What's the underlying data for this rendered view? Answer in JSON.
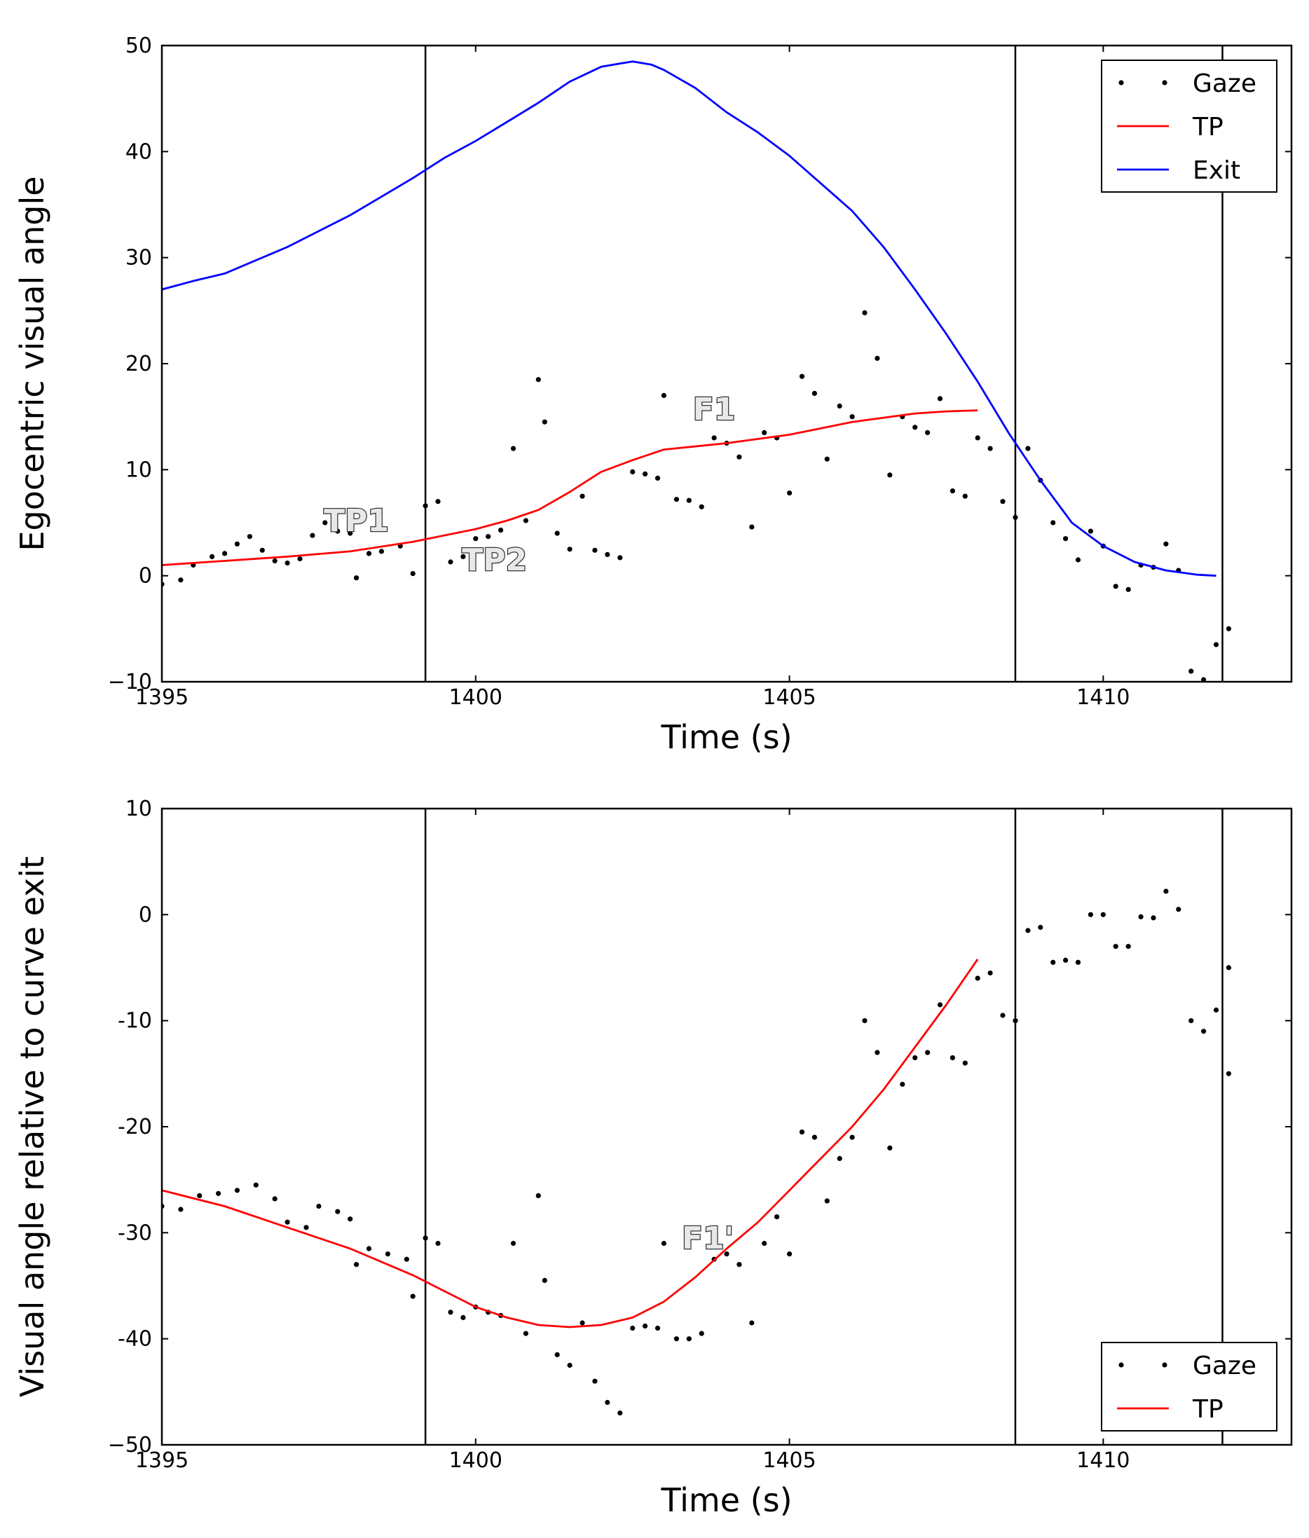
{
  "chart_data": [
    {
      "type": "line",
      "panel": "top",
      "xlabel": "Time (s)",
      "ylabel": "Egocentric visual angle",
      "xlim": [
        1395,
        1413
      ],
      "ylim": [
        -10,
        50
      ],
      "xticks": [
        1395,
        1400,
        1405,
        1410
      ],
      "yticks": [
        -10,
        0,
        10,
        20,
        30,
        40,
        50
      ],
      "ytick_labels": [
        "−10",
        "0",
        "10",
        "20",
        "30",
        "40",
        "50"
      ],
      "vlines": [
        1399.2,
        1408.6,
        1411.9
      ],
      "legend": [
        "Gaze",
        "TP",
        "Exit"
      ],
      "legend_loc": "upper right",
      "annotations": [
        {
          "text": "TP1",
          "x": 1398.1,
          "y": 4.2
        },
        {
          "text": "TP2",
          "x": 1400.3,
          "y": 0.5
        },
        {
          "text": "F1",
          "x": 1403.8,
          "y": 14.7
        }
      ],
      "series": [
        {
          "name": "Gaze",
          "style": "dots",
          "color": "#000000",
          "points": [
            [
              1395.0,
              -0.8
            ],
            [
              1395.3,
              -0.4
            ],
            [
              1395.5,
              1.0
            ],
            [
              1395.8,
              1.8
            ],
            [
              1396.0,
              2.1
            ],
            [
              1396.2,
              3.0
            ],
            [
              1396.4,
              3.7
            ],
            [
              1396.6,
              2.4
            ],
            [
              1396.8,
              1.4
            ],
            [
              1397.0,
              1.2
            ],
            [
              1397.2,
              1.6
            ],
            [
              1397.4,
              3.8
            ],
            [
              1397.6,
              5.0
            ],
            [
              1397.8,
              4.2
            ],
            [
              1398.0,
              4.0
            ],
            [
              1398.1,
              -0.2
            ],
            [
              1398.3,
              2.1
            ],
            [
              1398.5,
              2.3
            ],
            [
              1398.8,
              2.8
            ],
            [
              1399.0,
              0.2
            ],
            [
              1399.2,
              6.6
            ],
            [
              1399.4,
              7.0
            ],
            [
              1399.6,
              1.3
            ],
            [
              1399.8,
              1.8
            ],
            [
              1400.0,
              3.5
            ],
            [
              1400.2,
              3.7
            ],
            [
              1400.4,
              4.3
            ],
            [
              1400.6,
              12.0
            ],
            [
              1400.8,
              5.2
            ],
            [
              1401.0,
              18.5
            ],
            [
              1401.1,
              14.5
            ],
            [
              1401.3,
              4.0
            ],
            [
              1401.5,
              2.5
            ],
            [
              1401.7,
              7.5
            ],
            [
              1401.9,
              2.4
            ],
            [
              1402.1,
              2.0
            ],
            [
              1402.3,
              1.7
            ],
            [
              1402.5,
              9.8
            ],
            [
              1402.7,
              9.6
            ],
            [
              1402.9,
              9.2
            ],
            [
              1403.0,
              17.0
            ],
            [
              1403.2,
              7.2
            ],
            [
              1403.4,
              7.1
            ],
            [
              1403.6,
              6.5
            ],
            [
              1403.8,
              13.0
            ],
            [
              1404.0,
              12.5
            ],
            [
              1404.2,
              11.2
            ],
            [
              1404.4,
              4.6
            ],
            [
              1404.6,
              13.5
            ],
            [
              1404.8,
              13.0
            ],
            [
              1405.0,
              7.8
            ],
            [
              1405.2,
              18.8
            ],
            [
              1405.4,
              17.2
            ],
            [
              1405.6,
              11.0
            ],
            [
              1405.8,
              16.0
            ],
            [
              1406.0,
              15.0
            ],
            [
              1406.2,
              24.8
            ],
            [
              1406.4,
              20.5
            ],
            [
              1406.6,
              9.5
            ],
            [
              1406.8,
              15.0
            ],
            [
              1407.0,
              14.0
            ],
            [
              1407.2,
              13.5
            ],
            [
              1407.4,
              16.7
            ],
            [
              1407.6,
              8.0
            ],
            [
              1407.8,
              7.5
            ],
            [
              1408.0,
              13.0
            ],
            [
              1408.2,
              12.0
            ],
            [
              1408.4,
              7.0
            ],
            [
              1408.6,
              5.5
            ],
            [
              1408.8,
              12.0
            ],
            [
              1409.0,
              9.0
            ],
            [
              1409.2,
              5.0
            ],
            [
              1409.4,
              3.5
            ],
            [
              1409.6,
              1.5
            ],
            [
              1409.8,
              4.2
            ],
            [
              1410.0,
              2.8
            ],
            [
              1410.2,
              -1.0
            ],
            [
              1410.4,
              -1.3
            ],
            [
              1410.6,
              1.0
            ],
            [
              1410.8,
              0.8
            ],
            [
              1411.0,
              3.0
            ],
            [
              1411.2,
              0.5
            ],
            [
              1411.4,
              -9.0
            ],
            [
              1411.6,
              -9.8
            ],
            [
              1411.8,
              -6.5
            ],
            [
              1412.0,
              -5.0
            ]
          ]
        },
        {
          "name": "TP",
          "style": "line",
          "color": "#ff0000",
          "points": [
            [
              1395.0,
              1.0
            ],
            [
              1396.0,
              1.4
            ],
            [
              1397.0,
              1.8
            ],
            [
              1398.0,
              2.3
            ],
            [
              1399.0,
              3.2
            ],
            [
              1400.0,
              4.4
            ],
            [
              1400.5,
              5.2
            ],
            [
              1401.0,
              6.2
            ],
            [
              1401.5,
              7.9
            ],
            [
              1402.0,
              9.8
            ],
            [
              1402.5,
              10.9
            ],
            [
              1403.0,
              11.9
            ],
            [
              1404.0,
              12.5
            ],
            [
              1405.0,
              13.3
            ],
            [
              1406.0,
              14.5
            ],
            [
              1407.0,
              15.3
            ],
            [
              1407.5,
              15.5
            ],
            [
              1408.0,
              15.6
            ]
          ]
        },
        {
          "name": "Exit",
          "style": "line",
          "color": "#0000ff",
          "points": [
            [
              1395.0,
              27.0
            ],
            [
              1395.5,
              27.8
            ],
            [
              1396.0,
              28.5
            ],
            [
              1397.0,
              31.0
            ],
            [
              1398.0,
              34.0
            ],
            [
              1399.0,
              37.5
            ],
            [
              1399.5,
              39.4
            ],
            [
              1400.0,
              41.0
            ],
            [
              1400.5,
              42.8
            ],
            [
              1401.0,
              44.6
            ],
            [
              1401.5,
              46.6
            ],
            [
              1402.0,
              48.0
            ],
            [
              1402.5,
              48.5
            ],
            [
              1402.8,
              48.2
            ],
            [
              1403.0,
              47.7
            ],
            [
              1403.5,
              46.0
            ],
            [
              1404.0,
              43.7
            ],
            [
              1404.5,
              41.8
            ],
            [
              1405.0,
              39.6
            ],
            [
              1405.5,
              37.0
            ],
            [
              1406.0,
              34.4
            ],
            [
              1406.5,
              31.0
            ],
            [
              1407.0,
              27.0
            ],
            [
              1407.5,
              22.8
            ],
            [
              1408.0,
              18.3
            ],
            [
              1408.5,
              13.4
            ],
            [
              1409.0,
              9.0
            ],
            [
              1409.5,
              5.0
            ],
            [
              1410.0,
              2.8
            ],
            [
              1410.5,
              1.3
            ],
            [
              1411.0,
              0.5
            ],
            [
              1411.5,
              0.1
            ],
            [
              1411.8,
              0.0
            ]
          ]
        }
      ]
    },
    {
      "type": "line",
      "panel": "bottom",
      "xlabel": "Time (s)",
      "ylabel": "Visual angle relative to curve exit",
      "xlim": [
        1395,
        1413
      ],
      "ylim": [
        -50,
        10
      ],
      "xticks": [
        1395,
        1400,
        1405,
        1410
      ],
      "yticks": [
        -50,
        -40,
        -30,
        -20,
        -10,
        0,
        10
      ],
      "ytick_labels": [
        "−50",
        "-40",
        "-30",
        "-20",
        "-10",
        "0",
        "10"
      ],
      "vlines": [
        1399.2,
        1408.6,
        1411.9
      ],
      "legend": [
        "Gaze",
        "TP"
      ],
      "legend_loc": "lower right",
      "annotations": [
        {
          "text": "F1'",
          "x": 1403.7,
          "y": -31.5
        }
      ],
      "series": [
        {
          "name": "Gaze",
          "style": "dots",
          "color": "#000000",
          "points": [
            [
              1395.0,
              -27.5
            ],
            [
              1395.3,
              -27.8
            ],
            [
              1395.6,
              -26.5
            ],
            [
              1395.9,
              -26.3
            ],
            [
              1396.2,
              -26.0
            ],
            [
              1396.5,
              -25.5
            ],
            [
              1396.8,
              -26.8
            ],
            [
              1397.0,
              -29.0
            ],
            [
              1397.3,
              -29.5
            ],
            [
              1397.5,
              -27.5
            ],
            [
              1397.8,
              -28.0
            ],
            [
              1398.0,
              -28.7
            ],
            [
              1398.1,
              -33.0
            ],
            [
              1398.3,
              -31.5
            ],
            [
              1398.6,
              -32.0
            ],
            [
              1398.9,
              -32.5
            ],
            [
              1399.0,
              -36.0
            ],
            [
              1399.2,
              -30.5
            ],
            [
              1399.4,
              -31.0
            ],
            [
              1399.6,
              -37.5
            ],
            [
              1399.8,
              -38.0
            ],
            [
              1400.0,
              -37.0
            ],
            [
              1400.2,
              -37.5
            ],
            [
              1400.4,
              -37.8
            ],
            [
              1400.6,
              -31.0
            ],
            [
              1400.8,
              -39.5
            ],
            [
              1401.0,
              -26.5
            ],
            [
              1401.1,
              -34.5
            ],
            [
              1401.3,
              -41.5
            ],
            [
              1401.5,
              -42.5
            ],
            [
              1401.7,
              -38.5
            ],
            [
              1401.9,
              -44.0
            ],
            [
              1402.1,
              -46.0
            ],
            [
              1402.3,
              -47.0
            ],
            [
              1402.5,
              -39.0
            ],
            [
              1402.7,
              -38.8
            ],
            [
              1402.9,
              -39.0
            ],
            [
              1403.0,
              -31.0
            ],
            [
              1403.2,
              -40.0
            ],
            [
              1403.4,
              -40.0
            ],
            [
              1403.6,
              -39.5
            ],
            [
              1403.8,
              -32.5
            ],
            [
              1404.0,
              -32.0
            ],
            [
              1404.2,
              -33.0
            ],
            [
              1404.4,
              -38.5
            ],
            [
              1404.6,
              -31.0
            ],
            [
              1404.8,
              -28.5
            ],
            [
              1405.0,
              -32.0
            ],
            [
              1405.2,
              -20.5
            ],
            [
              1405.4,
              -21.0
            ],
            [
              1405.6,
              -27.0
            ],
            [
              1405.8,
              -23.0
            ],
            [
              1406.0,
              -21.0
            ],
            [
              1406.2,
              -10.0
            ],
            [
              1406.4,
              -13.0
            ],
            [
              1406.6,
              -22.0
            ],
            [
              1406.8,
              -16.0
            ],
            [
              1407.0,
              -13.5
            ],
            [
              1407.2,
              -13.0
            ],
            [
              1407.4,
              -8.5
            ],
            [
              1407.6,
              -13.5
            ],
            [
              1407.8,
              -14.0
            ],
            [
              1408.0,
              -6.0
            ],
            [
              1408.2,
              -5.5
            ],
            [
              1408.4,
              -9.5
            ],
            [
              1408.6,
              -10.0
            ],
            [
              1408.8,
              -1.5
            ],
            [
              1409.0,
              -1.2
            ],
            [
              1409.2,
              -4.5
            ],
            [
              1409.4,
              -4.3
            ],
            [
              1409.6,
              -4.5
            ],
            [
              1409.8,
              0.0
            ],
            [
              1410.0,
              0.0
            ],
            [
              1410.2,
              -3.0
            ],
            [
              1410.4,
              -3.0
            ],
            [
              1410.6,
              -0.2
            ],
            [
              1410.8,
              -0.3
            ],
            [
              1411.0,
              2.2
            ],
            [
              1411.2,
              0.5
            ],
            [
              1411.4,
              -10.0
            ],
            [
              1411.6,
              -11.0
            ],
            [
              1411.8,
              -9.0
            ],
            [
              1412.0,
              -5.0
            ],
            [
              1412.0,
              -15.0
            ]
          ]
        },
        {
          "name": "TP",
          "style": "line",
          "color": "#ff0000",
          "points": [
            [
              1395.0,
              -26.0
            ],
            [
              1396.0,
              -27.5
            ],
            [
              1397.0,
              -29.5
            ],
            [
              1398.0,
              -31.5
            ],
            [
              1399.0,
              -34.0
            ],
            [
              1399.5,
              -35.5
            ],
            [
              1400.0,
              -37.0
            ],
            [
              1400.5,
              -38.0
            ],
            [
              1401.0,
              -38.7
            ],
            [
              1401.5,
              -38.9
            ],
            [
              1402.0,
              -38.7
            ],
            [
              1402.5,
              -38.0
            ],
            [
              1403.0,
              -36.5
            ],
            [
              1403.5,
              -34.2
            ],
            [
              1404.0,
              -31.5
            ],
            [
              1404.5,
              -29.0
            ],
            [
              1405.0,
              -26.0
            ],
            [
              1405.5,
              -23.0
            ],
            [
              1406.0,
              -20.0
            ],
            [
              1406.5,
              -16.5
            ],
            [
              1407.0,
              -12.5
            ],
            [
              1407.5,
              -8.5
            ],
            [
              1408.0,
              -4.2
            ]
          ]
        }
      ]
    }
  ]
}
